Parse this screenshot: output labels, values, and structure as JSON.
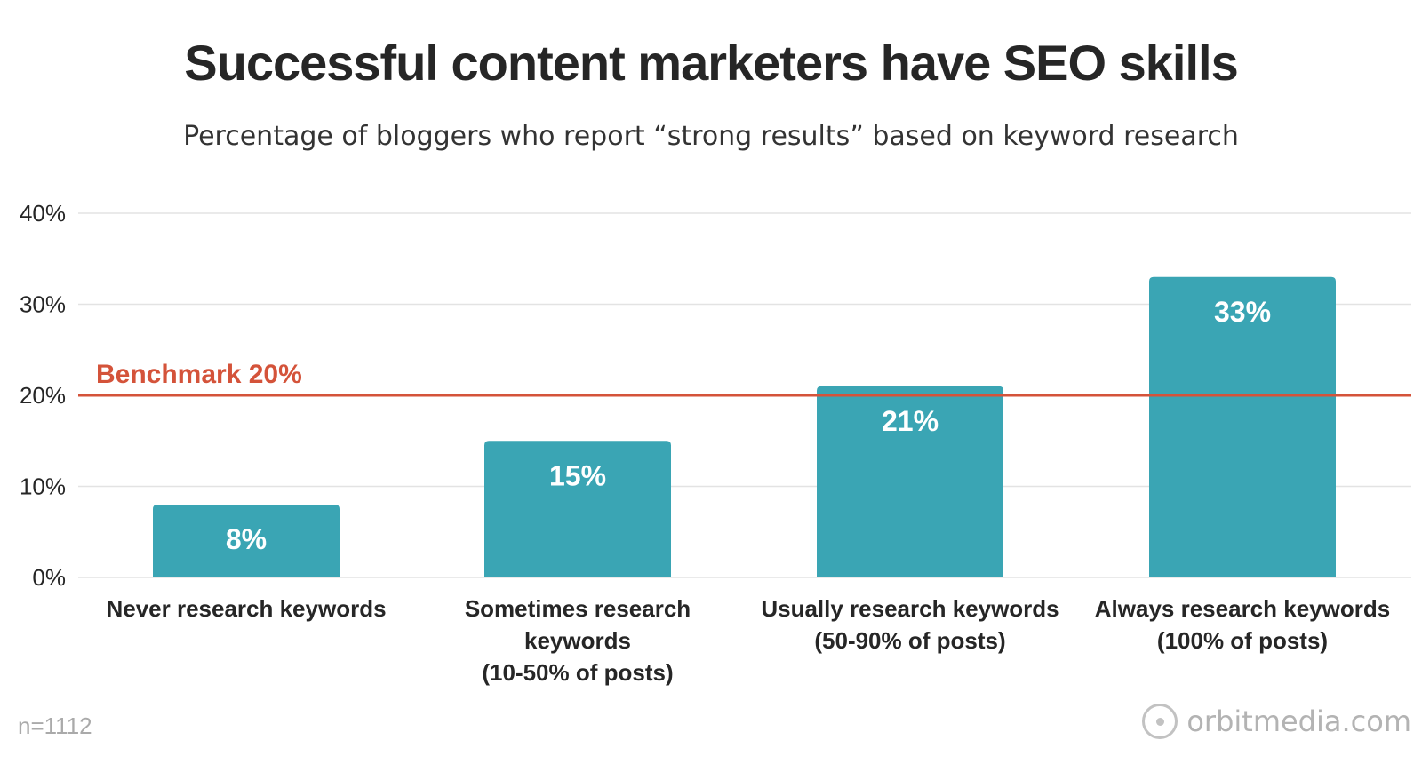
{
  "chart_data": {
    "type": "bar",
    "title": "Successful content marketers have SEO skills",
    "subtitle": "Percentage of bloggers who report “strong results” based on keyword research",
    "categories": [
      [
        "Never research keywords"
      ],
      [
        "Sometimes research",
        "keywords",
        "(10-50% of posts)"
      ],
      [
        "Usually research keywords",
        "(50-90% of posts)"
      ],
      [
        "Always research keywords",
        "(100% of posts)"
      ]
    ],
    "values": [
      8,
      15,
      21,
      33
    ],
    "data_labels": [
      "8%",
      "15%",
      "21%",
      "33%"
    ],
    "ylim": [
      0,
      40
    ],
    "yticks": [
      0,
      10,
      20,
      30,
      40
    ],
    "ytick_labels": [
      "0%",
      "10%",
      "20%",
      "30%",
      "40%"
    ],
    "grid": true,
    "benchmark": {
      "value": 20,
      "label": "Benchmark 20%"
    },
    "colors": {
      "bar": "#3aa5b4",
      "benchmark": "#d4533a",
      "grid": "#e3e3e3"
    }
  },
  "footer": {
    "sample_note": "n=1112",
    "brand": "orbitmedia.com"
  }
}
